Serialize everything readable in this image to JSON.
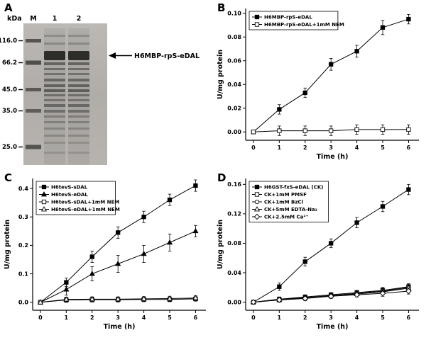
{
  "figure": {
    "background": "#ffffff",
    "line_color": "#000000",
    "panels": {
      "A": {
        "label": "A",
        "type": "gel",
        "unit": "kDa",
        "lane_labels": [
          "M",
          "1",
          "2"
        ],
        "marker_labels": [
          "116.0",
          "66.2",
          "45.0",
          "35.0",
          "25.0"
        ],
        "band_label": "H6MBP-rpS-eDAL",
        "gel_bg": "#b3b0ac"
      },
      "B": {
        "label": "B"
      },
      "C": {
        "label": "C"
      },
      "D": {
        "label": "D"
      }
    }
  },
  "chart_data": [
    {
      "panel": "B",
      "type": "line",
      "xlabel": "Time (h)",
      "ylabel": "U/mg protein",
      "x": [
        0,
        1,
        2,
        3,
        4,
        5,
        6
      ],
      "xlim": [
        -0.3,
        6.4
      ],
      "ylim": [
        -0.007,
        0.104
      ],
      "xticks": [
        0,
        1,
        2,
        3,
        4,
        5,
        6
      ],
      "xtick_labels": [
        "0",
        "1",
        "2",
        "3",
        "4",
        "5",
        "6"
      ],
      "yticks": [
        0,
        0.02,
        0.04,
        0.06,
        0.08,
        0.1
      ],
      "ytick_labels": [
        "0.00",
        "0.02",
        "0.04",
        "0.06",
        "0.08",
        "0.10"
      ],
      "grid": false,
      "legend_position": "top-left",
      "series": [
        {
          "name": "H6MBP-rpS-eDAL",
          "marker": "square",
          "style": "filled",
          "values": [
            0,
            0.019,
            0.033,
            0.057,
            0.068,
            0.088,
            0.095
          ],
          "errors": [
            0.001,
            0.004,
            0.004,
            0.005,
            0.005,
            0.006,
            0.004
          ]
        },
        {
          "name": "H6MBP-rpS-eDAL+1mM NEM",
          "marker": "square",
          "style": "open",
          "values": [
            0,
            0.001,
            0.001,
            0.001,
            0.002,
            0.002,
            0.002
          ],
          "errors": [
            0.001,
            0.004,
            0.004,
            0.004,
            0.004,
            0.004,
            0.004
          ]
        }
      ]
    },
    {
      "panel": "C",
      "type": "line",
      "xlabel": "Time (h)",
      "ylabel": "U/mg protein",
      "x": [
        0,
        1,
        2,
        3,
        4,
        5,
        6
      ],
      "xlim": [
        -0.3,
        6.4
      ],
      "ylim": [
        -0.028,
        0.435
      ],
      "xticks": [
        0,
        1,
        2,
        3,
        4,
        5,
        6
      ],
      "xtick_labels": [
        "0",
        "1",
        "2",
        "3",
        "4",
        "5",
        "6"
      ],
      "yticks": [
        0,
        0.1,
        0.2,
        0.3,
        0.4
      ],
      "ytick_labels": [
        "0.0",
        "0.1",
        "0.2",
        "0.3",
        "0.4"
      ],
      "grid": false,
      "legend_position": "top-left",
      "series": [
        {
          "name": "H6tevS-sDAL",
          "marker": "square",
          "style": "filled",
          "values": [
            0,
            0.07,
            0.16,
            0.245,
            0.3,
            0.36,
            0.41
          ],
          "errors": [
            0.002,
            0.015,
            0.02,
            0.02,
            0.02,
            0.02,
            0.02
          ]
        },
        {
          "name": "H6tevS-eDAL",
          "marker": "triangle",
          "style": "filled",
          "values": [
            0,
            0.045,
            0.1,
            0.135,
            0.17,
            0.21,
            0.25
          ],
          "errors": [
            0.002,
            0.02,
            0.025,
            0.03,
            0.03,
            0.03,
            0.02
          ]
        },
        {
          "name": "H6tevS-sDAL+1mM NEM",
          "marker": "square",
          "style": "open",
          "values": [
            0,
            0.008,
            0.009,
            0.009,
            0.01,
            0.01,
            0.012
          ],
          "errors": [
            0.002,
            0.008,
            0.008,
            0.008,
            0.008,
            0.008,
            0.008
          ]
        },
        {
          "name": "H6tevS-eDAL+1mM NEM",
          "marker": "triangle",
          "style": "open",
          "values": [
            0,
            0.01,
            0.011,
            0.011,
            0.012,
            0.013,
            0.015
          ],
          "errors": [
            0.002,
            0.008,
            0.008,
            0.008,
            0.008,
            0.008,
            0.008
          ]
        }
      ]
    },
    {
      "panel": "D",
      "type": "line",
      "xlabel": "Time (h)",
      "ylabel": "U/mg protein",
      "x": [
        0,
        1,
        2,
        3,
        4,
        5,
        6
      ],
      "xlim": [
        -0.3,
        6.4
      ],
      "ylim": [
        -0.011,
        0.168
      ],
      "xticks": [
        0,
        1,
        2,
        3,
        4,
        5,
        6
      ],
      "xtick_labels": [
        "0",
        "1",
        "2",
        "3",
        "4",
        "5",
        "6"
      ],
      "yticks": [
        0,
        0.04,
        0.08,
        0.12,
        0.16
      ],
      "ytick_labels": [
        "0.00",
        "0.04",
        "0.08",
        "0.12",
        "0.16"
      ],
      "grid": false,
      "legend_position": "top-left",
      "series": [
        {
          "name": "H6GST-fxS-eDAL (CK)",
          "marker": "square",
          "style": "filled",
          "values": [
            0,
            0.021,
            0.055,
            0.08,
            0.108,
            0.13,
            0.153
          ],
          "errors": [
            0.001,
            0.005,
            0.006,
            0.006,
            0.007,
            0.007,
            0.007
          ]
        },
        {
          "name": "CK+1mM PMSF",
          "marker": "square",
          "style": "open",
          "values": [
            0,
            0.004,
            0.007,
            0.01,
            0.013,
            0.016,
            0.021
          ],
          "errors": [
            0.001,
            0.003,
            0.003,
            0.003,
            0.003,
            0.004,
            0.004
          ]
        },
        {
          "name": "CK+1mM BzCl",
          "marker": "circle",
          "style": "open",
          "values": [
            0,
            0.004,
            0.006,
            0.009,
            0.012,
            0.015,
            0.02
          ],
          "errors": [
            0.001,
            0.003,
            0.003,
            0.003,
            0.003,
            0.004,
            0.004
          ]
        },
        {
          "name": "CK+5mM EDTA-Na₂",
          "marker": "triangle",
          "style": "open",
          "values": [
            0,
            0.003,
            0.006,
            0.009,
            0.011,
            0.014,
            0.019
          ],
          "errors": [
            0.001,
            0.003,
            0.003,
            0.003,
            0.003,
            0.004,
            0.004
          ]
        },
        {
          "name": "CK+2.5mM Ca²⁺",
          "marker": "diamond",
          "style": "open",
          "values": [
            0,
            0.003,
            0.005,
            0.008,
            0.01,
            0.012,
            0.015
          ],
          "errors": [
            0.001,
            0.003,
            0.003,
            0.003,
            0.003,
            0.004,
            0.004
          ]
        }
      ]
    }
  ]
}
